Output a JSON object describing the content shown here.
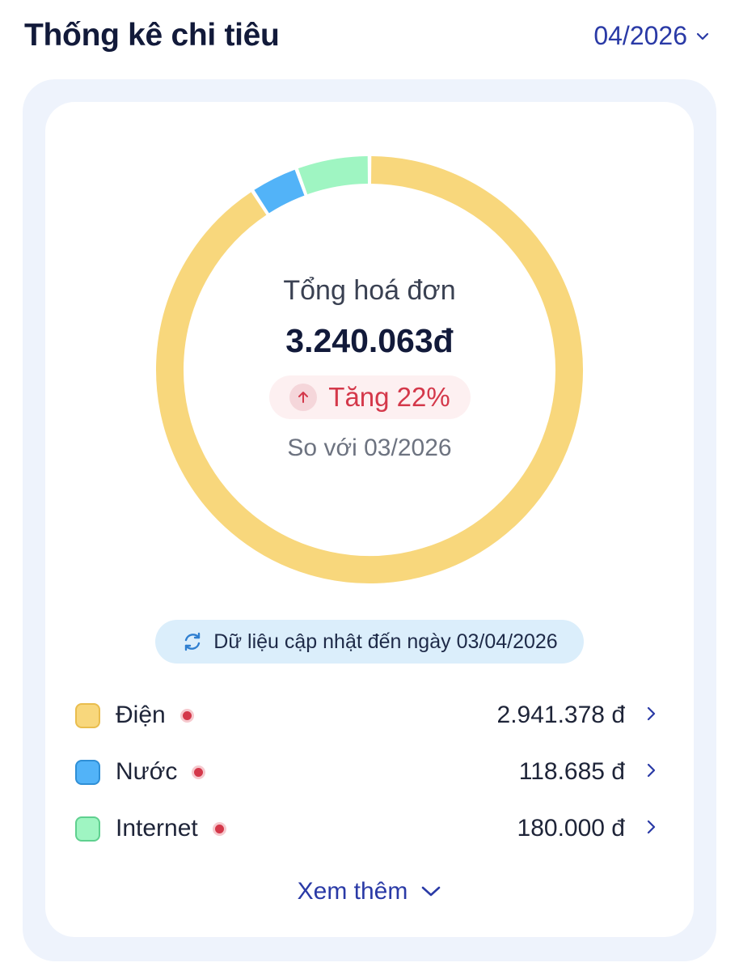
{
  "header": {
    "title": "Thống kê chi tiêu",
    "month": "04/2026"
  },
  "summary": {
    "label": "Tổng hoá đơn",
    "total": "3.240.063đ",
    "change": "Tăng 22%",
    "compare": "So với 03/2026"
  },
  "update_note": "Dữ liệu cập nhật đến ngày 03/04/2026",
  "colors": {
    "electricity": "#f8d77c",
    "water": "#52b3f8",
    "internet": "#9ff5c2",
    "accent": "#2a3aa6",
    "danger": "#d4384a"
  },
  "chart_data": {
    "type": "pie",
    "categories": [
      "Điện",
      "Nước",
      "Internet"
    ],
    "values": [
      2941378,
      118685,
      180000
    ],
    "total": 3240063
  },
  "legend": [
    {
      "name": "Điện",
      "value": "2.941.378 đ",
      "color": "#f8d77c",
      "border": "#e9bd4e"
    },
    {
      "name": "Nước",
      "value": "118.685 đ",
      "color": "#52b3f8",
      "border": "#2f8fd6"
    },
    {
      "name": "Internet",
      "value": "180.000 đ",
      "color": "#9ff5c2",
      "border": "#5fd08f"
    }
  ],
  "see_more": "Xem thêm"
}
